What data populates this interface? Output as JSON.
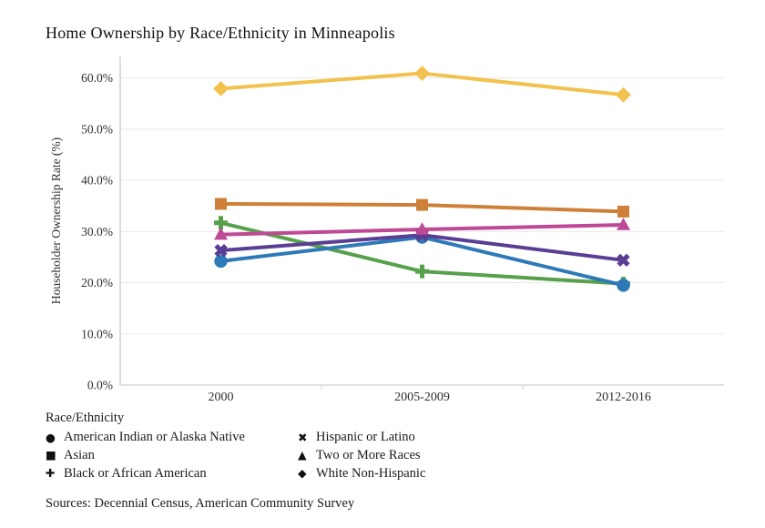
{
  "chart_data": {
    "type": "line",
    "title": "Home Ownership by Race/Ethnicity in Minneapolis",
    "xlabel": "",
    "ylabel": "Householder Ownership Rate (%)",
    "categories": [
      "2000",
      "2005-2009",
      "2012-2016"
    ],
    "ylim": [
      0,
      64.2
    ],
    "ytick_values": [
      0,
      10,
      20,
      30,
      40,
      50,
      60
    ],
    "ytick_labels": [
      "0.0%",
      "10.0%",
      "20.0%",
      "30.0%",
      "40.0%",
      "50.0%",
      "60.0%"
    ],
    "grid": true,
    "legend_position": "bottom-left",
    "series": [
      {
        "name": "American Indian or Alaska Native",
        "marker": "circle",
        "glyph": "●",
        "color": "#2E79B7",
        "values": [
          24.2,
          28.9,
          19.5
        ]
      },
      {
        "name": "Asian",
        "marker": "square",
        "glyph": "■",
        "color": "#CE8038",
        "values": [
          35.4,
          35.2,
          33.9
        ]
      },
      {
        "name": "Black or African American",
        "marker": "plus",
        "glyph": "✚",
        "color": "#57A04C",
        "values": [
          31.7,
          22.2,
          19.8
        ]
      },
      {
        "name": "Hispanic or Latino",
        "marker": "x",
        "glyph": "✖",
        "color": "#5A3E94",
        "values": [
          26.3,
          29.3,
          24.4
        ]
      },
      {
        "name": "Two or More Races",
        "marker": "triangle",
        "glyph": "▲",
        "color": "#BE4A96",
        "values": [
          29.4,
          30.4,
          31.3
        ]
      },
      {
        "name": "White Non-Hispanic",
        "marker": "diamond",
        "glyph": "◆",
        "color": "#F2C14E",
        "values": [
          57.9,
          60.9,
          56.7
        ]
      }
    ]
  },
  "legend": {
    "title": "Race/Ethnicity"
  },
  "footer": {
    "sources": "Sources: Decennial Census, American Community Survey"
  },
  "colors": {
    "gridline": "#E9E9E9",
    "axis_line": "#B9B9B9",
    "axis_line_bottom": "#C6C6C6",
    "tick_text": "#2e2e2e",
    "separator_tick": "#D2D2D2"
  }
}
